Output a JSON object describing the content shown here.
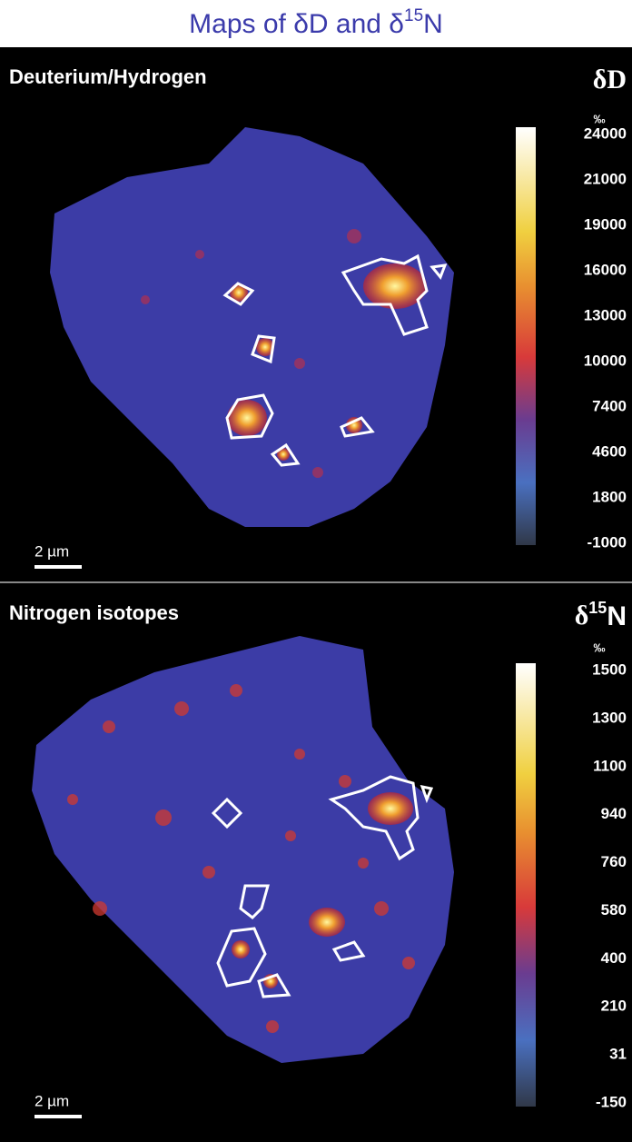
{
  "title": {
    "prefix": "Maps of δD and δ",
    "sup": "15",
    "suffix": "N"
  },
  "panels": [
    {
      "label": "Deuterium/Hydrogen",
      "symbol": {
        "prefix": "δD",
        "sup": "",
        "suffix": ""
      },
      "unit": "‰",
      "ticks": [
        24000,
        21000,
        19000,
        16000,
        13000,
        10000,
        7400,
        4600,
        1800,
        -1000
      ],
      "scale_bar": "2 µm"
    },
    {
      "label": "Nitrogen isotopes",
      "symbol": {
        "prefix": "δ",
        "sup": "15",
        "suffix": "N"
      },
      "unit": "‰",
      "ticks": [
        1500,
        1300,
        1100,
        940,
        760,
        580,
        400,
        210,
        31,
        -150
      ],
      "scale_bar": "2 µm"
    }
  ]
}
